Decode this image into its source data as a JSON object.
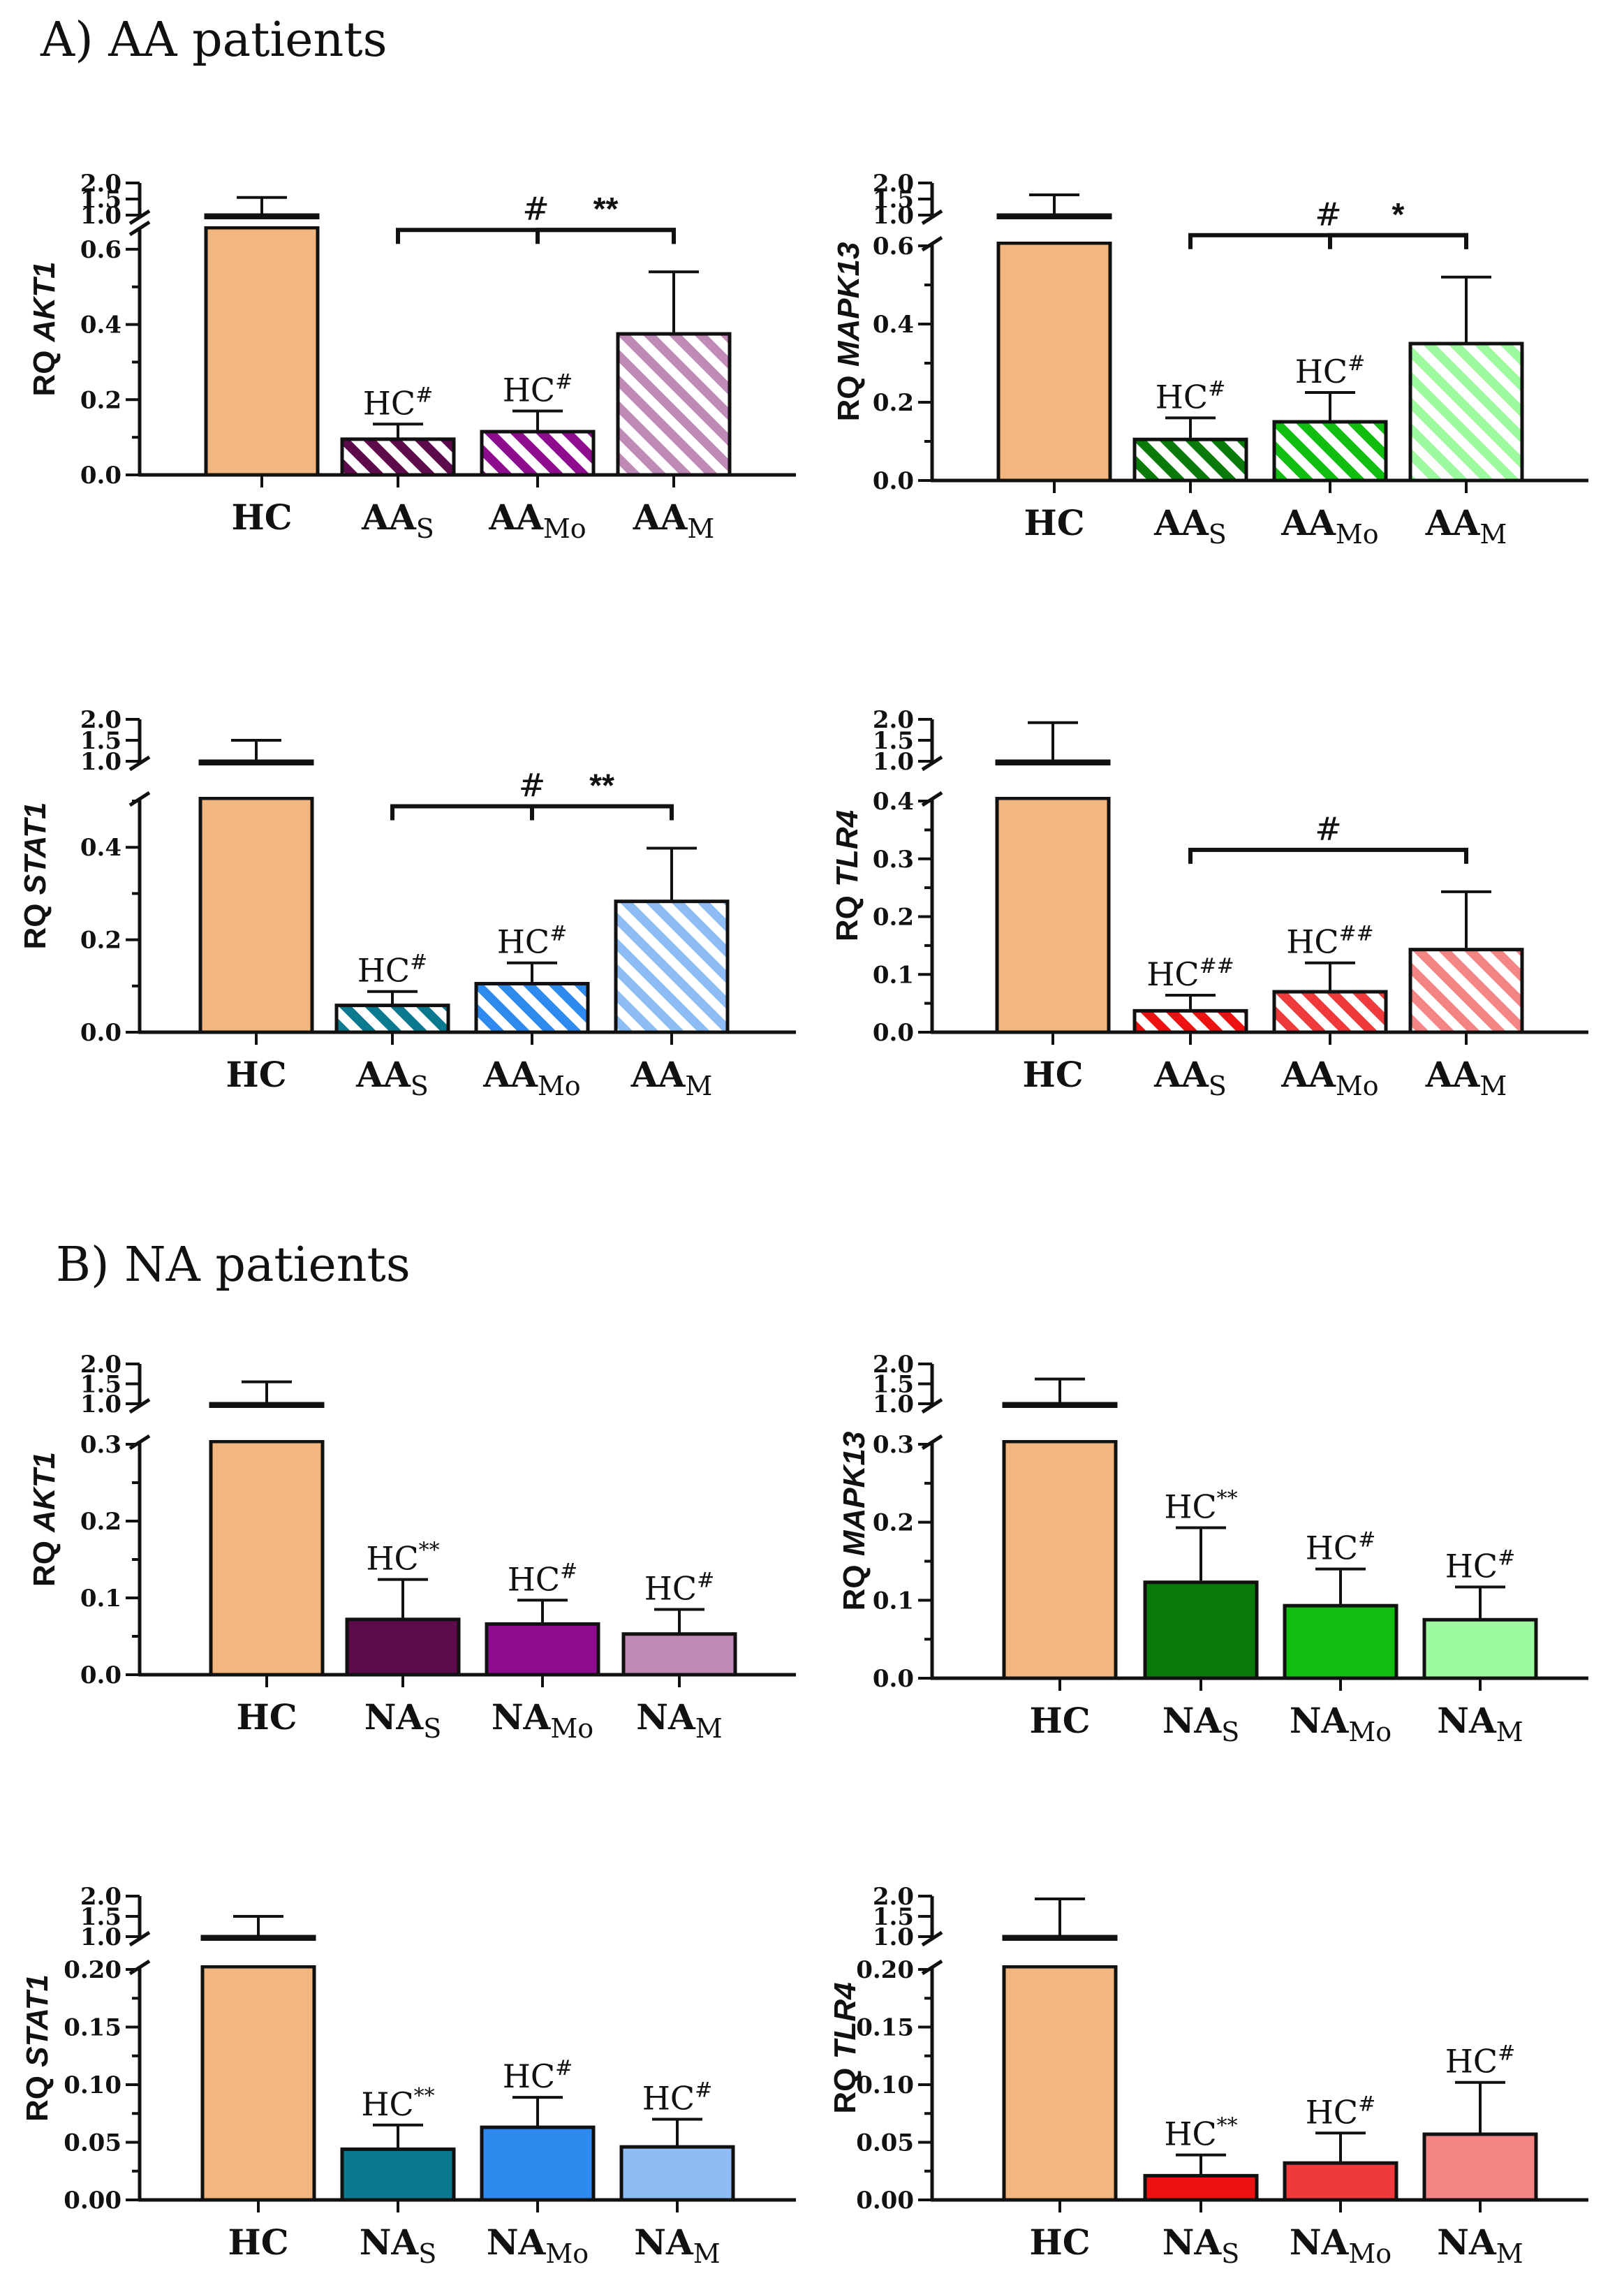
{
  "sections": {
    "a_title": "A) AA patients",
    "b_title": "B) NA patients"
  },
  "colors": {
    "hc": "#F2B77E",
    "akt1": [
      "#5E0B4C",
      "#8E0D8E",
      "#C08AB6"
    ],
    "mapk13": [
      "#0A7A0A",
      "#10BE10",
      "#9EFA9E"
    ],
    "stat1": [
      "#0B7A8E",
      "#2E8AEF",
      "#8EBCF5"
    ],
    "tlr4": [
      "#EE1111",
      "#EE3A3A",
      "#F48585"
    ]
  },
  "chart_data": [
    {
      "id": "aa-akt1",
      "panel": "A",
      "type": "bar",
      "pattern": "hatched",
      "ylabel_prefix": "RQ ",
      "gene": "AKT1",
      "categories": [
        {
          "base": "HC",
          "sub": ""
        },
        {
          "base": "AA",
          "sub": "S"
        },
        {
          "base": "AA",
          "sub": "Mo"
        },
        {
          "base": "AA",
          "sub": "M"
        }
      ],
      "values": [
        1.0,
        0.095,
        0.115,
        0.375
      ],
      "errors": [
        0.55,
        0.04,
        0.055,
        0.165
      ],
      "upper_ticks": [
        "1.0",
        "1.5",
        "2.0"
      ],
      "lower_ticks": [
        "0.0",
        "0.2",
        "0.4",
        "0.6"
      ],
      "lower_ylim": [
        0,
        0.65
      ],
      "labels": [
        {
          "bar": 1,
          "main": "HC",
          "sup": "#"
        },
        {
          "bar": 2,
          "main": "HC",
          "sup": "#"
        }
      ],
      "brackets": [
        {
          "from": 1,
          "to": 3,
          "text": "#"
        },
        {
          "from": 2,
          "to": 3,
          "text": "**"
        }
      ]
    },
    {
      "id": "aa-mapk13",
      "panel": "A",
      "type": "bar",
      "pattern": "hatched",
      "ylabel_prefix": "RQ ",
      "gene": "MAPK13",
      "categories": [
        {
          "base": "HC",
          "sub": ""
        },
        {
          "base": "AA",
          "sub": "S"
        },
        {
          "base": "AA",
          "sub": "Mo"
        },
        {
          "base": "AA",
          "sub": "M"
        }
      ],
      "values": [
        1.0,
        0.105,
        0.15,
        0.35
      ],
      "errors": [
        0.63,
        0.055,
        0.075,
        0.17
      ],
      "upper_ticks": [
        "1.0",
        "1.5",
        "2.0"
      ],
      "lower_ticks": [
        "0.0",
        "0.2",
        "0.4",
        "0.6"
      ],
      "lower_ylim": [
        0,
        0.6
      ],
      "labels": [
        {
          "bar": 1,
          "main": "HC",
          "sup": "#"
        },
        {
          "bar": 2,
          "main": "HC",
          "sup": "#"
        }
      ],
      "brackets": [
        {
          "from": 1,
          "to": 3,
          "text": "#"
        },
        {
          "from": 2,
          "to": 3,
          "text": "*"
        }
      ]
    },
    {
      "id": "aa-stat1",
      "panel": "A",
      "type": "bar",
      "pattern": "hatched",
      "ylabel_prefix": "RQ ",
      "gene": "STAT1",
      "categories": [
        {
          "base": "HC",
          "sub": ""
        },
        {
          "base": "AA",
          "sub": "S"
        },
        {
          "base": "AA",
          "sub": "Mo"
        },
        {
          "base": "AA",
          "sub": "M"
        }
      ],
      "values": [
        1.0,
        0.058,
        0.105,
        0.283
      ],
      "errors": [
        0.5,
        0.03,
        0.045,
        0.115
      ],
      "upper_ticks": [
        "1.0",
        "1.5",
        "2.0"
      ],
      "lower_ticks": [
        "0.0",
        "0.2",
        "0.4"
      ],
      "lower_ylim": [
        0,
        0.5
      ],
      "labels": [
        {
          "bar": 1,
          "main": "HC",
          "sup": "#"
        },
        {
          "bar": 2,
          "main": "HC",
          "sup": "#"
        }
      ],
      "brackets": [
        {
          "from": 1,
          "to": 3,
          "text": "#"
        },
        {
          "from": 2,
          "to": 3,
          "text": "**"
        }
      ]
    },
    {
      "id": "aa-tlr4",
      "panel": "A",
      "type": "bar",
      "pattern": "hatched",
      "ylabel_prefix": "RQ ",
      "gene": "TLR4",
      "categories": [
        {
          "base": "HC",
          "sub": ""
        },
        {
          "base": "AA",
          "sub": "S"
        },
        {
          "base": "AA",
          "sub": "Mo"
        },
        {
          "base": "AA",
          "sub": "M"
        }
      ],
      "values": [
        1.0,
        0.037,
        0.07,
        0.143
      ],
      "errors": [
        0.92,
        0.027,
        0.05,
        0.1
      ],
      "upper_ticks": [
        "1.0",
        "1.5",
        "2.0"
      ],
      "lower_ticks": [
        "0.0",
        "0.1",
        "0.2",
        "0.3",
        "0.4"
      ],
      "lower_ylim": [
        0,
        0.4
      ],
      "labels": [
        {
          "bar": 1,
          "main": "HC",
          "sup": "##"
        },
        {
          "bar": 2,
          "main": "HC",
          "sup": "##"
        }
      ],
      "brackets": [
        {
          "from": 1,
          "to": 3,
          "text": "#"
        }
      ]
    },
    {
      "id": "na-akt1",
      "panel": "B",
      "type": "bar",
      "pattern": "solid",
      "ylabel_prefix": "RQ ",
      "gene": "AKT1",
      "categories": [
        {
          "base": "HC",
          "sub": ""
        },
        {
          "base": "NA",
          "sub": "S"
        },
        {
          "base": "NA",
          "sub": "Mo"
        },
        {
          "base": "NA",
          "sub": "M"
        }
      ],
      "values": [
        1.0,
        0.072,
        0.066,
        0.053
      ],
      "errors": [
        0.55,
        0.052,
        0.031,
        0.032
      ],
      "upper_ticks": [
        "1.0",
        "1.5",
        "2.0"
      ],
      "lower_ticks": [
        "0.0",
        "0.1",
        "0.2",
        "0.3"
      ],
      "lower_ylim": [
        0,
        0.3
      ],
      "labels": [
        {
          "bar": 1,
          "main": "HC",
          "sup": "**"
        },
        {
          "bar": 2,
          "main": "HC",
          "sup": "#"
        },
        {
          "bar": 3,
          "main": "HC",
          "sup": "#"
        }
      ],
      "brackets": []
    },
    {
      "id": "na-mapk13",
      "panel": "B",
      "type": "bar",
      "pattern": "solid",
      "ylabel_prefix": "RQ ",
      "gene": "MAPK13",
      "categories": [
        {
          "base": "HC",
          "sub": ""
        },
        {
          "base": "NA",
          "sub": "S"
        },
        {
          "base": "NA",
          "sub": "Mo"
        },
        {
          "base": "NA",
          "sub": "M"
        }
      ],
      "values": [
        1.0,
        0.123,
        0.093,
        0.075
      ],
      "errors": [
        0.62,
        0.07,
        0.047,
        0.042
      ],
      "upper_ticks": [
        "1.0",
        "1.5",
        "2.0"
      ],
      "lower_ticks": [
        "0.0",
        "0.1",
        "0.2",
        "0.3"
      ],
      "lower_ylim": [
        0,
        0.3
      ],
      "labels": [
        {
          "bar": 1,
          "main": "HC",
          "sup": "**"
        },
        {
          "bar": 2,
          "main": "HC",
          "sup": "#"
        },
        {
          "bar": 3,
          "main": "HC",
          "sup": "#"
        }
      ],
      "brackets": []
    },
    {
      "id": "na-stat1",
      "panel": "B",
      "type": "bar",
      "pattern": "solid",
      "ylabel_prefix": "RQ ",
      "gene": "STAT1",
      "categories": [
        {
          "base": "HC",
          "sub": ""
        },
        {
          "base": "NA",
          "sub": "S"
        },
        {
          "base": "NA",
          "sub": "Mo"
        },
        {
          "base": "NA",
          "sub": "M"
        }
      ],
      "values": [
        1.0,
        0.044,
        0.063,
        0.046
      ],
      "errors": [
        0.5,
        0.021,
        0.026,
        0.024
      ],
      "upper_ticks": [
        "1.0",
        "1.5",
        "2.0"
      ],
      "lower_ticks": [
        "0.00",
        "0.05",
        "0.10",
        "0.15",
        "0.20"
      ],
      "lower_ylim": [
        0,
        0.2
      ],
      "labels": [
        {
          "bar": 1,
          "main": "HC",
          "sup": "**"
        },
        {
          "bar": 2,
          "main": "HC",
          "sup": "#"
        },
        {
          "bar": 3,
          "main": "HC",
          "sup": "#"
        }
      ],
      "brackets": []
    },
    {
      "id": "na-tlr4",
      "panel": "B",
      "type": "bar",
      "pattern": "solid",
      "ylabel_prefix": "RQ ",
      "gene": "TLR4",
      "categories": [
        {
          "base": "HC",
          "sub": ""
        },
        {
          "base": "NA",
          "sub": "S"
        },
        {
          "base": "NA",
          "sub": "Mo"
        },
        {
          "base": "NA",
          "sub": "M"
        }
      ],
      "values": [
        1.0,
        0.021,
        0.032,
        0.057
      ],
      "errors": [
        0.93,
        0.018,
        0.026,
        0.045
      ],
      "upper_ticks": [
        "1.0",
        "1.5",
        "2.0"
      ],
      "lower_ticks": [
        "0.00",
        "0.05",
        "0.10",
        "0.15",
        "0.20"
      ],
      "lower_ylim": [
        0,
        0.2
      ],
      "labels": [
        {
          "bar": 1,
          "main": "HC",
          "sup": "**"
        },
        {
          "bar": 2,
          "main": "HC",
          "sup": "#"
        },
        {
          "bar": 3,
          "main": "HC",
          "sup": "#"
        }
      ],
      "brackets": []
    }
  ]
}
